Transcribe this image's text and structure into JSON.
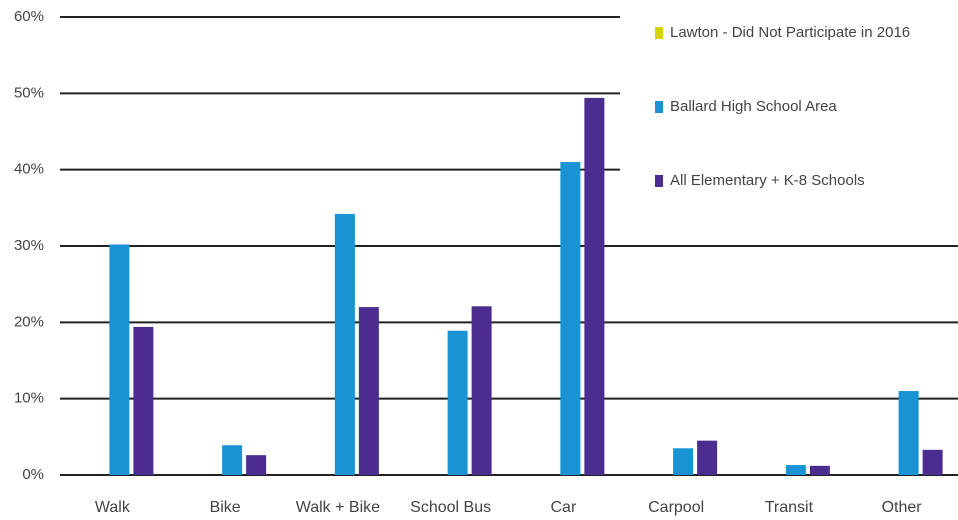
{
  "chart_data": {
    "type": "bar",
    "categories": [
      "Walk",
      "Bike",
      "Walk + Bike",
      "School Bus",
      "Car",
      "Carpool",
      "Transit",
      "Other"
    ],
    "series": [
      {
        "name": "Lawton - Did Not Participate in 2016",
        "color": "#d6d300",
        "values": [
          null,
          null,
          null,
          null,
          null,
          null,
          null,
          null
        ]
      },
      {
        "name": "Ballard High School Area",
        "color": "#1a93d4",
        "values": [
          30.2,
          3.9,
          34.2,
          18.9,
          41.0,
          3.5,
          1.3,
          11.0
        ]
      },
      {
        "name": "All Elementary + K-8 Schools",
        "color": "#4a2d8f",
        "values": [
          19.4,
          2.6,
          22.0,
          22.1,
          49.4,
          4.5,
          1.2,
          3.3
        ]
      }
    ],
    "ylim": [
      0,
      60
    ],
    "yticks": [
      {
        "value": 0,
        "label": "0%"
      },
      {
        "value": 10,
        "label": "10%"
      },
      {
        "value": 20,
        "label": "20%"
      },
      {
        "value": 30,
        "label": "30%"
      },
      {
        "value": 40,
        "label": "40%"
      },
      {
        "value": 50,
        "label": "50%"
      },
      {
        "value": 60,
        "label": "60%"
      }
    ],
    "grid": true,
    "legend": "top-right"
  }
}
